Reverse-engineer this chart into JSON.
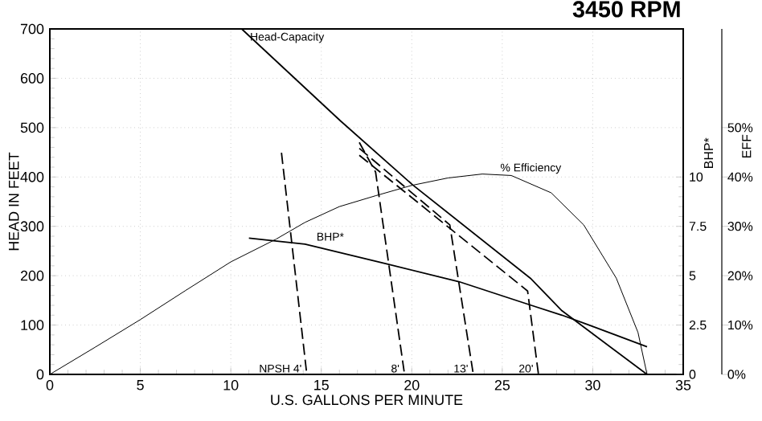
{
  "chart_data": {
    "type": "line",
    "title": "3450 RPM",
    "xlabel": "U.S. GALLONS PER MINUTE",
    "ylabel": "HEAD IN FEET",
    "y2label": "BHP*",
    "y3label": "EFF",
    "xlim": [
      0,
      35
    ],
    "xticks": [
      0,
      5,
      10,
      15,
      20,
      25,
      30,
      35
    ],
    "ylim": [
      0,
      700
    ],
    "yticks": [
      0,
      100,
      200,
      300,
      400,
      500,
      600,
      700
    ],
    "y2lim": [
      0,
      17.5
    ],
    "y2ticks": [
      0,
      2.5,
      5,
      7.5,
      10
    ],
    "y3lim": [
      0,
      70
    ],
    "y3ticks": [
      {
        "value": 0,
        "label": "0%"
      },
      {
        "value": 10,
        "label": "10%"
      },
      {
        "value": 20,
        "label": "20%"
      },
      {
        "value": 30,
        "label": "30%"
      },
      {
        "value": 40,
        "label": "40%"
      },
      {
        "value": 50,
        "label": "50%"
      }
    ],
    "grid": true,
    "line_style": "solid",
    "series": [
      {
        "name": "Head-Capacity",
        "color": "#000000",
        "x": [
          10.6,
          16.05,
          20.05,
          26.55,
          28.3,
          33
        ],
        "values": [
          700,
          514,
          384,
          195,
          129,
          0
        ]
      },
      {
        "name": "% Efficiency",
        "color": "#000000",
        "axis": "y3",
        "x": [
          0,
          2.5,
          5,
          7.5,
          10,
          12.5,
          14.1,
          16,
          18,
          20,
          22,
          23.9,
          25.5,
          27.7,
          29.5,
          31.3,
          32.5,
          33
        ],
        "values": [
          0,
          5.5,
          11.1,
          17,
          22.8,
          27.4,
          30.8,
          34,
          36.2,
          38.3,
          39.8,
          40.6,
          40.3,
          36.8,
          30.3,
          19.5,
          8.5,
          0
        ]
      },
      {
        "name": "BHP*",
        "color": "#000000",
        "axis": "y2",
        "x": [
          11,
          14.1,
          18.6,
          22.6,
          26.6,
          28.3,
          29.8,
          33
        ],
        "values": [
          6.9,
          6.6,
          5.6,
          4.7,
          3.5,
          3.0,
          2.5,
          1.4
        ]
      },
      {
        "name": "NPSH 4'",
        "color": "#000000",
        "line_style": "dashed",
        "x": [
          12.8,
          14.2
        ],
        "values": [
          449,
          0
        ]
      },
      {
        "name": "8'",
        "color": "#000000",
        "line_style": "dashed",
        "x": [
          17.1,
          18.0,
          19.6
        ],
        "values": [
          470,
          410,
          0
        ]
      },
      {
        "name": "13'",
        "color": "#000000",
        "line_style": "dashed",
        "x": [
          17.1,
          22.1,
          23.4
        ],
        "values": [
          458,
          303,
          0
        ]
      },
      {
        "name": "20'",
        "color": "#000000",
        "line_style": "dashed",
        "x": [
          17.1,
          26.4,
          27.0
        ],
        "values": [
          444,
          169,
          0
        ]
      }
    ]
  }
}
